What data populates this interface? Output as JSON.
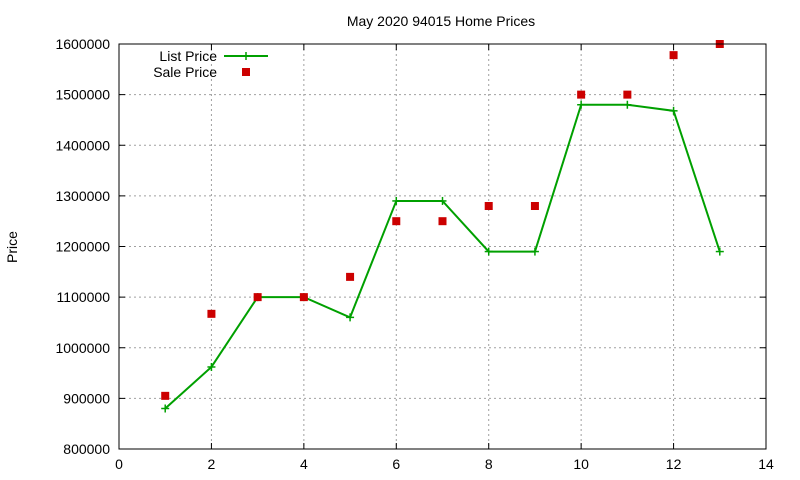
{
  "chart_data": {
    "type": "line",
    "title": "May 2020 94015 Home Prices",
    "xlabel": "",
    "ylabel": "Price",
    "xlim": [
      0,
      14
    ],
    "ylim": [
      800000,
      1600000
    ],
    "x_ticks": [
      "0",
      "2",
      "4",
      "6",
      "8",
      "10",
      "12",
      "14"
    ],
    "y_ticks": [
      "800000",
      "900000",
      "1000000",
      "1100000",
      "1200000",
      "1300000",
      "1400000",
      "1500000",
      "1600000"
    ],
    "grid": true,
    "legend_position": "top-left",
    "series": [
      {
        "name": "List Price",
        "style": "line-with-plus-markers",
        "color": "#00a000",
        "x": [
          1,
          2,
          3,
          4,
          5,
          6,
          7,
          8,
          9,
          10,
          11,
          12,
          13
        ],
        "values": [
          880000,
          962000,
          1100000,
          1100000,
          1060000,
          1290000,
          1290000,
          1190000,
          1190000,
          1480000,
          1480000,
          1468000,
          1190000
        ]
      },
      {
        "name": "Sale Price",
        "style": "square-markers",
        "color": "#cc0000",
        "x": [
          1,
          2,
          3,
          4,
          5,
          6,
          7,
          8,
          9,
          10,
          11,
          12,
          13
        ],
        "values": [
          905000,
          1067000,
          1100000,
          1100000,
          1140000,
          1250000,
          1250000,
          1280000,
          1280000,
          1500000,
          1500000,
          1578000,
          1600000
        ]
      }
    ]
  }
}
